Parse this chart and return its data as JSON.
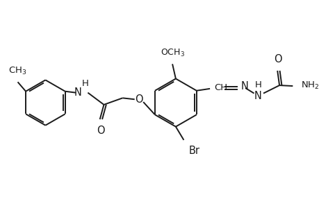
{
  "bg_color": "#ffffff",
  "line_color": "#1a1a1a",
  "line_width": 1.4,
  "font_size": 10.5,
  "fig_width": 4.6,
  "fig_height": 3.0,
  "dpi": 100,
  "xlim": [
    0,
    460
  ],
  "ylim": [
    0,
    300
  ]
}
